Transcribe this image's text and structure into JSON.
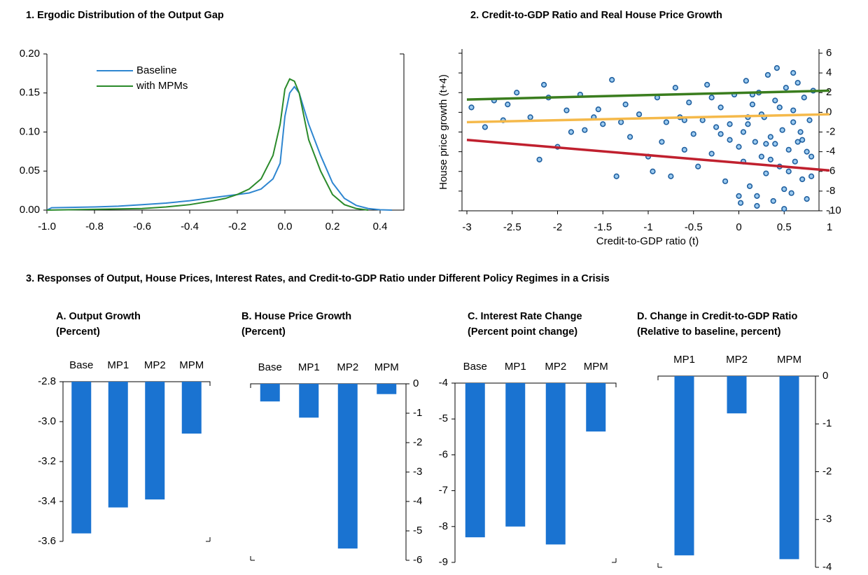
{
  "panel_title": "3. Responses of Output, House Prices, Interest Rates, and Credit-to-GDP Ratio under Different Policy Regimes in a Crisis",
  "chart_data": [
    {
      "type": "line",
      "title": "1. Ergodic Distribution of the Output Gap",
      "xlim": [
        -1.0,
        0.5
      ],
      "ylim": [
        0,
        0.2
      ],
      "xticks": [
        {
          "value": -1.0,
          "label": "-1.0"
        },
        -0.8,
        -0.6,
        -0.4,
        -0.2,
        {
          "value": 0,
          "label": "0.0"
        },
        0.2,
        0.4
      ],
      "yticks": [
        {
          "value": 0,
          "label": "0.00"
        },
        {
          "value": 0.05,
          "label": "0.05"
        },
        {
          "value": 0.1,
          "label": "0.10"
        },
        {
          "value": 0.15,
          "label": "0.15"
        },
        {
          "value": 0.2,
          "label": "0.20"
        }
      ],
      "legend": "upper left",
      "series": [
        {
          "name": "Baseline",
          "color": "#2e86d0",
          "x": [
            -1.0,
            -0.98,
            -0.8,
            -0.7,
            -0.6,
            -0.5,
            -0.4,
            -0.3,
            -0.2,
            -0.15,
            -0.1,
            -0.05,
            -0.02,
            0.0,
            0.02,
            0.04,
            0.06,
            0.1,
            0.15,
            0.2,
            0.25,
            0.3,
            0.35,
            0.4,
            0.45
          ],
          "values": [
            0.0,
            0.003,
            0.004,
            0.005,
            0.007,
            0.009,
            0.012,
            0.016,
            0.02,
            0.022,
            0.027,
            0.04,
            0.06,
            0.12,
            0.15,
            0.158,
            0.15,
            0.11,
            0.07,
            0.035,
            0.015,
            0.006,
            0.002,
            0.0005,
            0.0
          ]
        },
        {
          "name": "with MPMs",
          "color": "#2a8a2a",
          "x": [
            -1.0,
            -0.8,
            -0.6,
            -0.5,
            -0.4,
            -0.3,
            -0.25,
            -0.2,
            -0.15,
            -0.1,
            -0.05,
            -0.02,
            0.0,
            0.02,
            0.04,
            0.06,
            0.08,
            0.1,
            0.15,
            0.2,
            0.25,
            0.3,
            0.35
          ],
          "values": [
            0.0,
            0.001,
            0.002,
            0.004,
            0.007,
            0.012,
            0.015,
            0.02,
            0.027,
            0.04,
            0.07,
            0.11,
            0.155,
            0.168,
            0.165,
            0.15,
            0.12,
            0.09,
            0.05,
            0.02,
            0.007,
            0.002,
            0.0
          ]
        }
      ]
    },
    {
      "type": "scatter",
      "title": "2. Credit-to-GDP Ratio and Real House Price Growth",
      "xlabel": "Credit-to-GDP ratio (t)",
      "ylabel": "House price growth (t+4)",
      "xlim": [
        -3,
        1
      ],
      "ylim": [
        -10,
        6
      ],
      "xticks": [
        -3,
        -2.5,
        -2,
        -1.5,
        -1,
        -0.5,
        0,
        0.5,
        1
      ],
      "yticks": [
        6,
        4,
        2,
        0,
        -2,
        -4,
        -6,
        -8,
        -10
      ],
      "series": [
        {
          "type": "scatter",
          "color": "#9ccbf0",
          "edgecolor": "#1f5f9f",
          "x": [
            -2.95,
            -2.8,
            -2.7,
            -2.6,
            -2.45,
            -2.3,
            -2.2,
            -2.1,
            -2.0,
            -1.9,
            -1.85,
            -1.75,
            -1.6,
            -1.5,
            -1.4,
            -1.35,
            -1.25,
            -1.2,
            -1.1,
            -1.0,
            -0.95,
            -0.9,
            -0.85,
            -0.8,
            -0.75,
            -0.7,
            -0.65,
            -0.6,
            -0.55,
            -0.5,
            -0.45,
            -0.4,
            -0.35,
            -0.3,
            -0.25,
            -0.2,
            -0.15,
            -0.1,
            -0.05,
            0.0,
            0.02,
            0.05,
            0.08,
            0.1,
            0.12,
            0.15,
            0.18,
            0.2,
            0.22,
            0.25,
            0.28,
            0.3,
            0.32,
            0.35,
            0.38,
            0.4,
            0.42,
            0.45,
            0.48,
            0.5,
            0.52,
            0.55,
            0.58,
            0.6,
            0.62,
            0.65,
            0.68,
            0.7,
            0.72,
            0.75,
            0.78,
            0.8,
            0.82,
            -1.55,
            -1.7,
            -2.15,
            -2.55,
            -0.3,
            0.1,
            0.3,
            0.45,
            0.6,
            0.7,
            0.15,
            -0.1,
            0.35,
            0.55,
            0.75,
            0.05,
            0.25,
            0.4,
            0.5,
            0.65,
            0.8,
            0.2,
            -0.2,
            -0.6,
            -1.3,
            0.0,
            0.6
          ],
          "values": [
            0.5,
            -1.5,
            1.2,
            -0.8,
            2.0,
            -0.5,
            -4.8,
            1.5,
            -3.5,
            0.2,
            -2.0,
            1.8,
            -0.5,
            -1.2,
            3.3,
            -6.5,
            0.8,
            -2.5,
            -0.2,
            -4.5,
            -6.0,
            1.5,
            -3.0,
            -1.0,
            -6.5,
            2.5,
            -0.5,
            -3.8,
            1.0,
            -2.2,
            -5.5,
            -0.8,
            2.8,
            -4.2,
            -1.5,
            0.5,
            -7.0,
            -2.8,
            1.8,
            -3.5,
            -9.2,
            -5.0,
            3.2,
            -1.2,
            -7.5,
            0.8,
            -3.0,
            -8.5,
            2.0,
            -4.5,
            -0.5,
            -6.2,
            3.8,
            -2.5,
            -9.0,
            1.2,
            4.5,
            -5.5,
            -1.8,
            -7.8,
            2.5,
            -3.8,
            -8.2,
            0.2,
            -5.0,
            3.0,
            -2.0,
            -6.8,
            1.5,
            -4.0,
            -0.8,
            -6.5,
            2.2,
            0.3,
            -1.8,
            2.8,
            0.8,
            1.5,
            -0.5,
            -3.2,
            0.5,
            -1.0,
            -2.8,
            1.8,
            -1.2,
            -4.8,
            -6.0,
            -8.8,
            -2.0,
            -0.2,
            -3.2,
            -9.8,
            -3.0,
            -4.5,
            -9.5,
            -2.2,
            -0.8,
            -1.0,
            -8.5,
            4.0
          ]
        },
        {
          "type": "line",
          "color": "#3a7d1e",
          "x": [
            -3,
            1
          ],
          "values": [
            1.3,
            2.2
          ]
        },
        {
          "type": "line",
          "color": "#f5b94a",
          "x": [
            -3,
            1
          ],
          "values": [
            -1.0,
            -0.2
          ]
        },
        {
          "type": "line",
          "color": "#c0202e",
          "x": [
            -3,
            1
          ],
          "values": [
            -2.8,
            -5.9
          ]
        }
      ]
    },
    {
      "type": "bar",
      "title": "A. Output Growth",
      "subtitle": "(Percent)",
      "y_axis_side": "left",
      "color": "#1a73d1",
      "categories": [
        "Base",
        "MP1",
        "MP2",
        "MPM"
      ],
      "values": [
        -3.56,
        -3.43,
        -3.39,
        -3.06
      ],
      "ylim": [
        -3.6,
        -2.8
      ],
      "yticks": [
        -2.8,
        {
          "value": -3.0,
          "label": "-3.0"
        },
        -3.2,
        -3.4,
        -3.6
      ]
    },
    {
      "type": "bar",
      "title": "B. House Price Growth",
      "subtitle": "(Percent)",
      "y_axis_side": "right",
      "color": "#1a73d1",
      "categories": [
        "Base",
        "MP1",
        "MP2",
        "MPM"
      ],
      "values": [
        -0.6,
        -1.15,
        -5.6,
        -0.35
      ],
      "ylim": [
        -6,
        0
      ],
      "yticks": [
        0,
        -1,
        -2,
        -3,
        -4,
        -5,
        -6
      ]
    },
    {
      "type": "bar",
      "title": "C. Interest Rate Change",
      "subtitle": "(Percent point change)",
      "y_axis_side": "left",
      "color": "#1a73d1",
      "categories": [
        "Base",
        "MP1",
        "MP2",
        "MPM"
      ],
      "values": [
        -8.3,
        -8.0,
        -8.5,
        -5.35
      ],
      "ylim": [
        -9,
        -4
      ],
      "yticks": [
        -4,
        -5,
        -6,
        -7,
        -8,
        -9
      ]
    },
    {
      "type": "bar",
      "title": "D. Change in Credit-to-GDP Ratio",
      "subtitle": "(Relative to baseline, percent)",
      "y_axis_side": "right",
      "color": "#1a73d1",
      "categories": [
        "MP1",
        "MP2",
        "MPM"
      ],
      "values": [
        -3.75,
        -0.78,
        -3.83
      ],
      "ylim": [
        -4,
        0
      ],
      "yticks": [
        0,
        -1,
        -2,
        -3,
        -4
      ]
    }
  ]
}
